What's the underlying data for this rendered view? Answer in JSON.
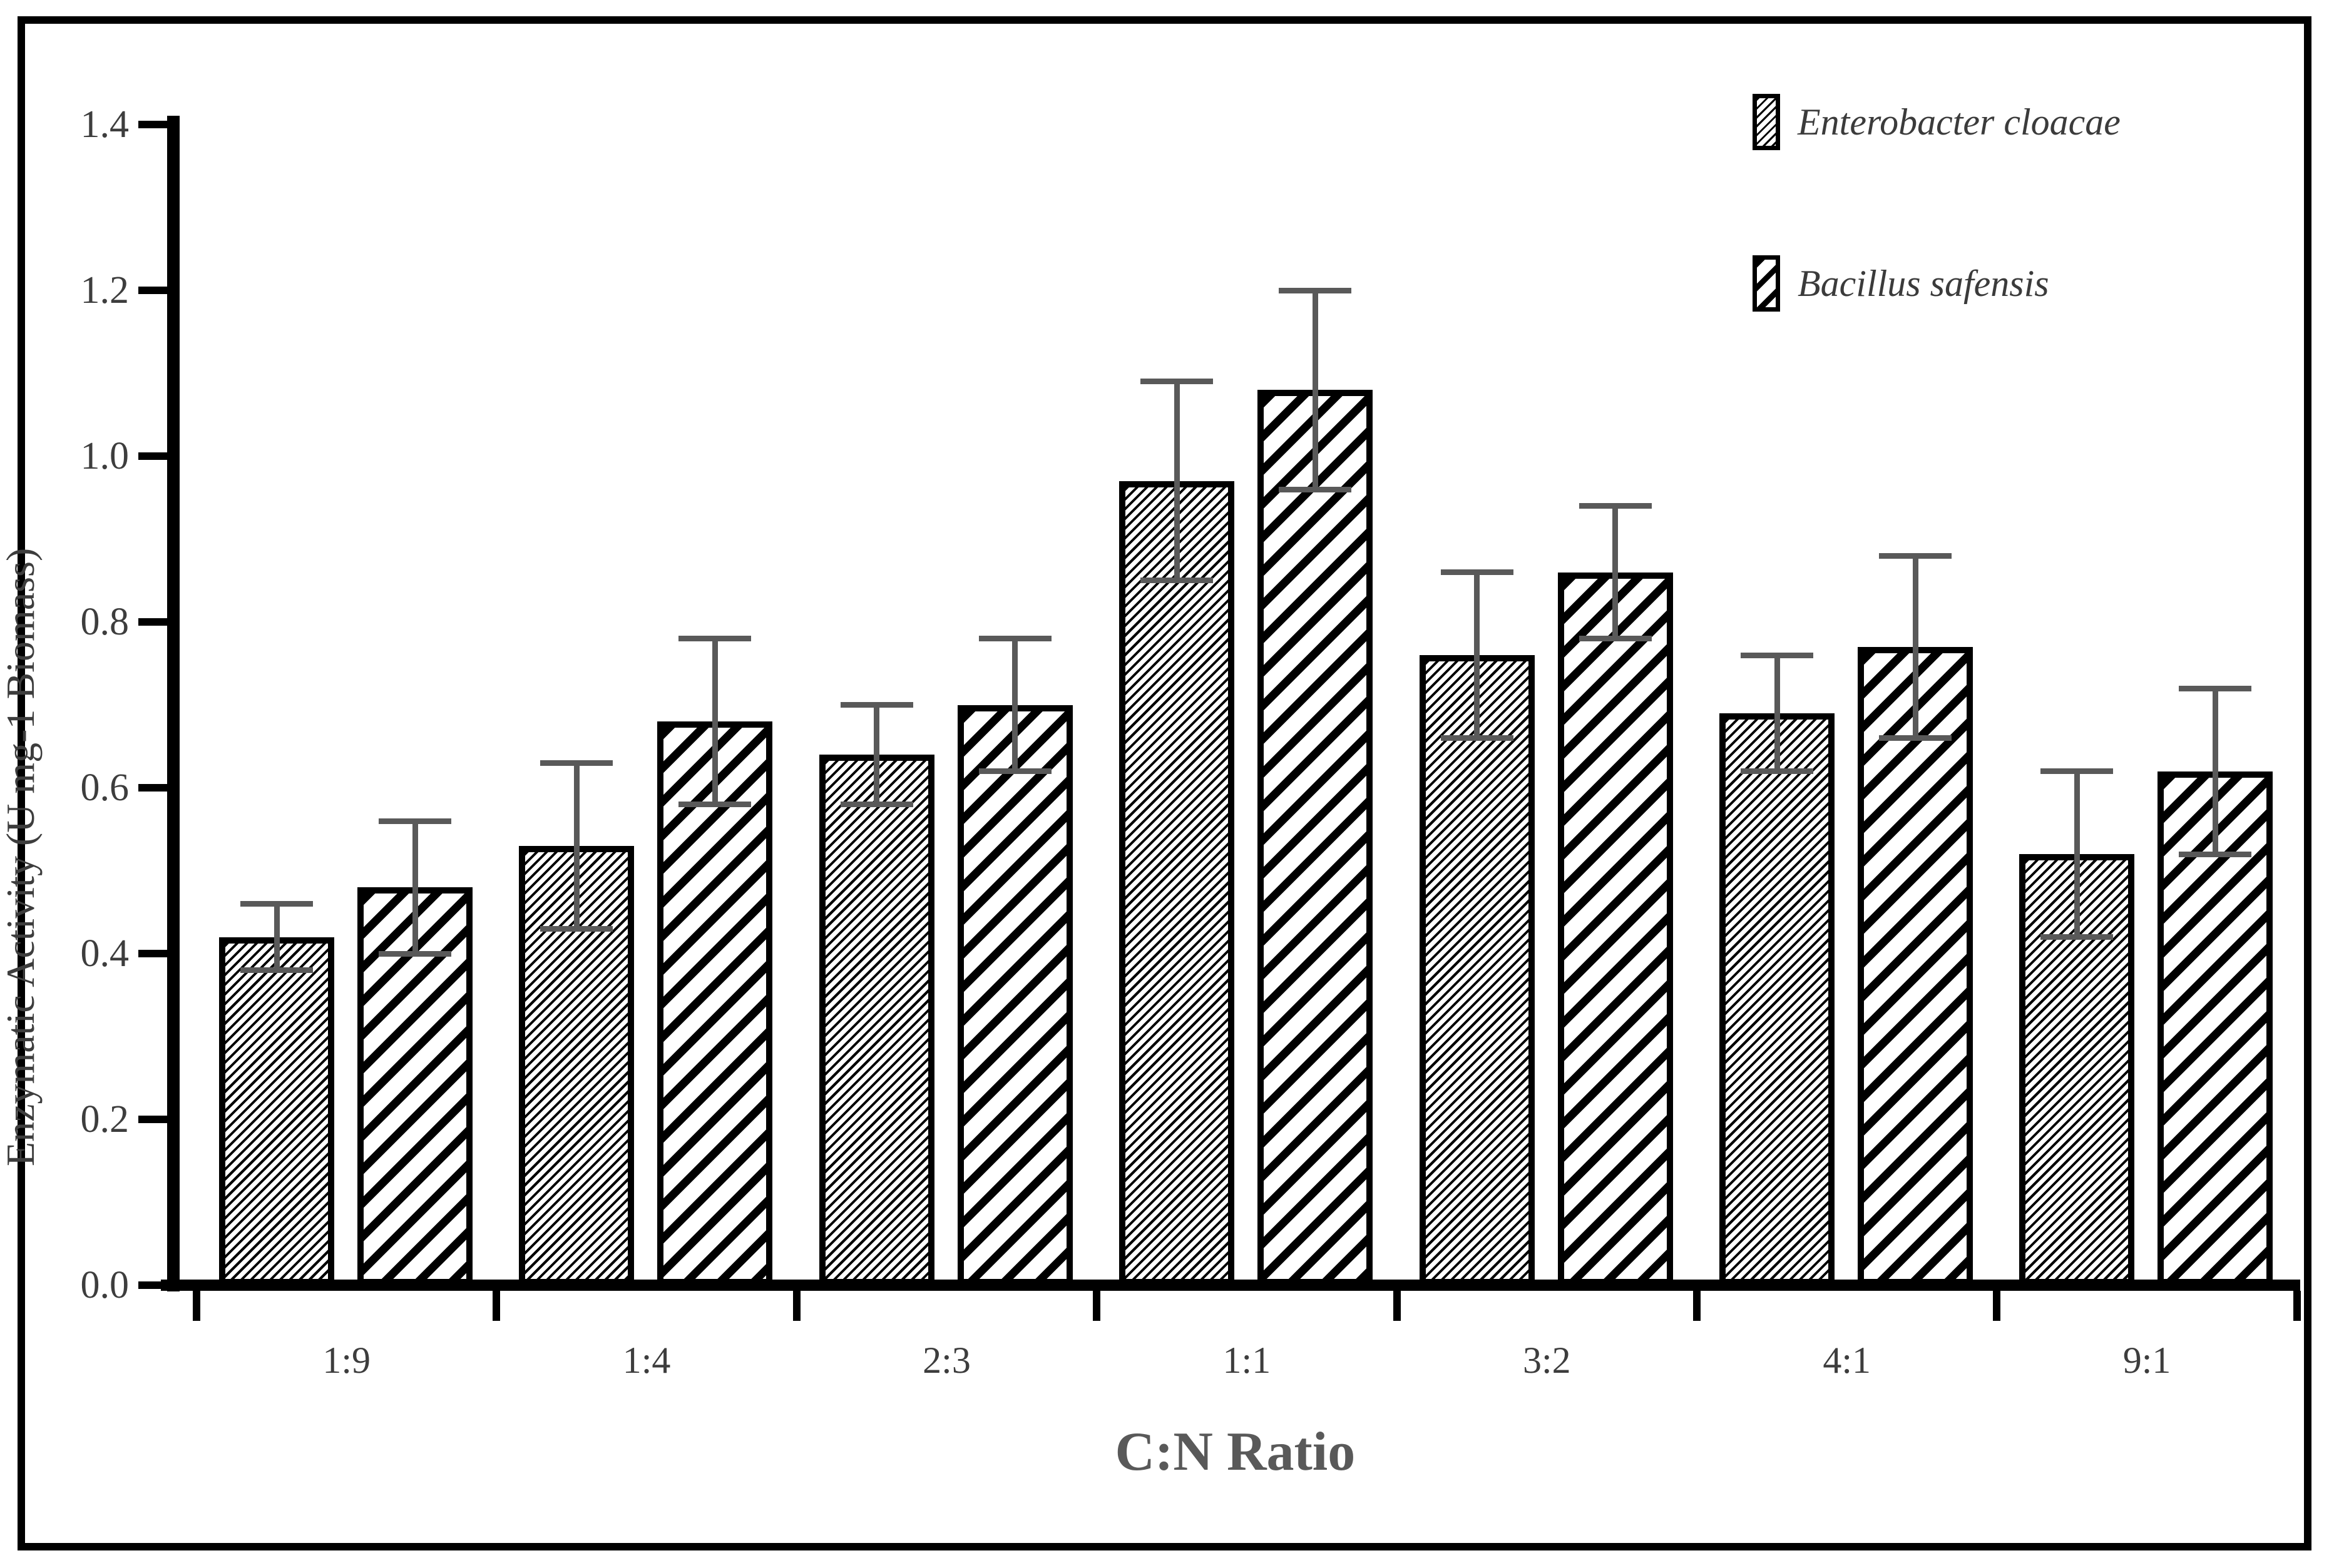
{
  "chart_data": {
    "type": "bar",
    "title": "",
    "xlabel": "C:N Ratio",
    "ylabel": "Enzymatic Activity (U mg-1 Biomass)",
    "categories": [
      "1:9",
      "1:4",
      "2:3",
      "1:1",
      "3:2",
      "4:1",
      "9:1"
    ],
    "series": [
      {
        "name": "Enterobacter cloacae",
        "pattern": "fine-diagonal-hatch",
        "values": [
          0.42,
          0.53,
          0.64,
          0.97,
          0.76,
          0.69,
          0.52
        ],
        "errors": [
          0.04,
          0.1,
          0.06,
          0.12,
          0.1,
          0.07,
          0.1
        ]
      },
      {
        "name": "Bacillus safensis",
        "pattern": "coarse-diagonal-hatch",
        "values": [
          0.48,
          0.68,
          0.7,
          1.08,
          0.86,
          0.77,
          0.62
        ],
        "errors": [
          0.08,
          0.1,
          0.08,
          0.12,
          0.08,
          0.11,
          0.1
        ]
      }
    ],
    "ylim": [
      0,
      1.4
    ],
    "ytick_step": 0.2,
    "ytick_labels": [
      "0.0",
      "0.2",
      "0.4",
      "0.6",
      "0.8",
      "1.0",
      "1.2",
      "1.4"
    ],
    "grid": false,
    "legend_position": "top-right",
    "error_bars": "plus-minus, gray caps"
  },
  "legend": {
    "items": [
      {
        "label": "Enterobacter cloacae",
        "swatch": "fine-hatch-swatch-icon"
      },
      {
        "label": "Bacillus safensis",
        "swatch": "coarse-hatch-swatch-icon"
      }
    ]
  },
  "colors": {
    "background": "#ffffff",
    "axis": "#000000",
    "bar_fill": "#ffffff",
    "bar_hatch": "#000000",
    "error_bar": "#595959",
    "tick_text": "#3d3d3d",
    "axis_title_text": "#595959",
    "legend_text": "#3b3b3b",
    "frame_border": "#000000"
  }
}
